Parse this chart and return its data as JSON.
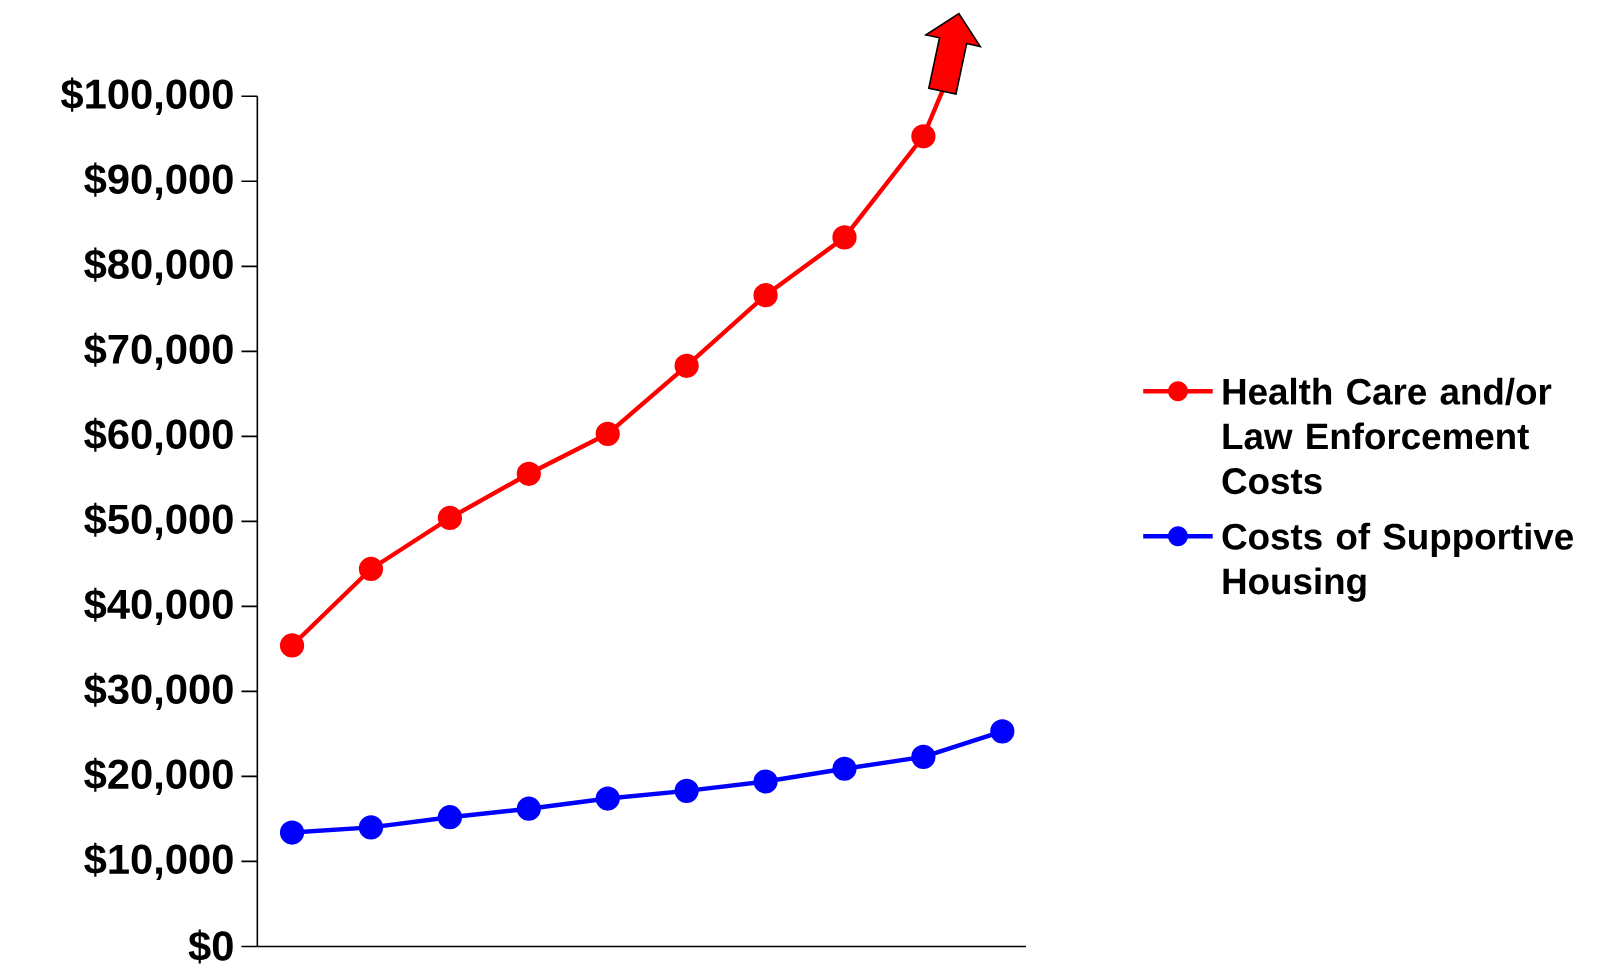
{
  "chart_data": {
    "type": "line",
    "categories": [
      null,
      null,
      null,
      null,
      null,
      null,
      null,
      null,
      null,
      null
    ],
    "series": [
      {
        "name": "Health Care and/or Law Enforcement Costs",
        "color": "#ff0000",
        "values": [
          35400,
          44400,
          50400,
          55600,
          60300,
          68300,
          76600,
          83400,
          95300,
          null
        ]
      },
      {
        "name": "Costs of Supportive Housing",
        "color": "#0000ff",
        "values": [
          13400,
          14000,
          15200,
          16200,
          17400,
          18300,
          19400,
          20900,
          22300,
          25300
        ]
      }
    ],
    "ylim": [
      0,
      100000
    ],
    "yticks": [
      {
        "value": 0,
        "label": "$0"
      },
      {
        "value": 10000,
        "label": "$10,000"
      },
      {
        "value": 20000,
        "label": "$20,000"
      },
      {
        "value": 30000,
        "label": "$30,000"
      },
      {
        "value": 40000,
        "label": "$40,000"
      },
      {
        "value": 50000,
        "label": "$50,000"
      },
      {
        "value": 60000,
        "label": "$60,000"
      },
      {
        "value": 70000,
        "label": "$70,000"
      },
      {
        "value": 80000,
        "label": "$80,000"
      },
      {
        "value": 90000,
        "label": "$90,000"
      },
      {
        "value": 100000,
        "label": "$100,000"
      }
    ],
    "marker": "circle",
    "legend": "right"
  }
}
